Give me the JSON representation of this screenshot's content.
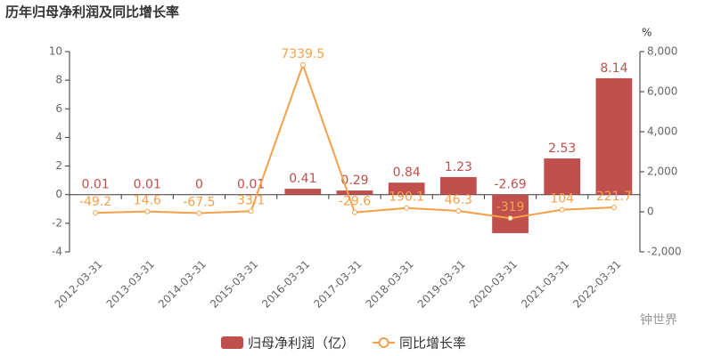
{
  "chart_data": {
    "type": "bar-line",
    "title": "历年归母净利润及同比增长率",
    "y2_unit": "%",
    "watermark": "钟世界",
    "categories": [
      "2012-03-31",
      "2013-03-31",
      "2014-03-31",
      "2015-03-31",
      "2016-03-31",
      "2017-03-31",
      "2018-03-31",
      "2019-03-31",
      "2020-03-31",
      "2021-03-31",
      "2022-03-31"
    ],
    "series": [
      {
        "name": "归母净利润（亿）",
        "type": "bar",
        "color": "#c0504d",
        "values": [
          0.01,
          0.01,
          0,
          0.01,
          0.41,
          0.29,
          0.84,
          1.23,
          -2.69,
          2.53,
          8.14
        ]
      },
      {
        "name": "同比增长率",
        "type": "line",
        "axis": "y2",
        "color": "#f5a04a",
        "values": [
          -49.2,
          14.6,
          -67.5,
          33.1,
          7339.5,
          -29.6,
          190.1,
          46.3,
          -319,
          104,
          221.7
        ]
      }
    ],
    "ylim": [
      -4,
      10
    ],
    "yticks": [
      -4,
      -2,
      0,
      2,
      4,
      6,
      8,
      10
    ],
    "y2lim": [
      -2000,
      8000
    ],
    "y2ticks": [
      {
        "value": -2000,
        "label": "-2,000"
      },
      0,
      {
        "value": 2000,
        "label": "2,000"
      },
      {
        "value": 4000,
        "label": "4,000"
      },
      {
        "value": 6000,
        "label": "6,000"
      },
      {
        "value": 8000,
        "label": "8,000"
      }
    ]
  }
}
